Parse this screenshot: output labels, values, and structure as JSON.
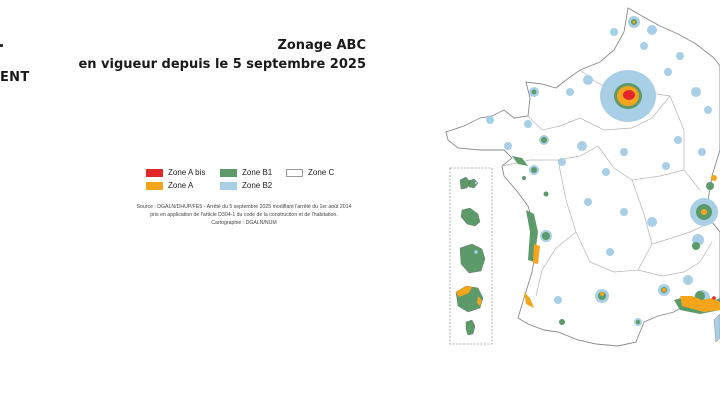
{
  "side_text": "ENT",
  "title": {
    "line1": "Zonage ABC",
    "line2": "en vigueur depuis le 5 septembre 2025"
  },
  "legend": {
    "items": [
      {
        "label": "Zone A bis",
        "color": "#e3262b"
      },
      {
        "label": "Zone A",
        "color": "#f4a51c"
      },
      {
        "label": "Zone B1",
        "color": "#5c9a6a"
      },
      {
        "label": "Zone B2",
        "color": "#a9cfe6"
      },
      {
        "label": "Zone C",
        "color": "#ffffff"
      }
    ]
  },
  "source": {
    "line1": "Source : DGALN/DHUP/FE5 - Arrêté du 5 septembre 2025 modifiant l'arrêté du 1er août 2014",
    "line2": "pris en application de l'article D304-1 du code de la construction et de l'habitation.",
    "line3": "Cartographie : DGALN/NUM"
  },
  "colors": {
    "zone_c_fill": "#ffffff",
    "border": "#8a8a8a",
    "region_border": "#b5b5b5",
    "a_bis": "#e3262b",
    "a": "#f4a51c",
    "b1": "#5c9a6a",
    "b2": "#a9cfe6",
    "sea": "#ffffff"
  }
}
